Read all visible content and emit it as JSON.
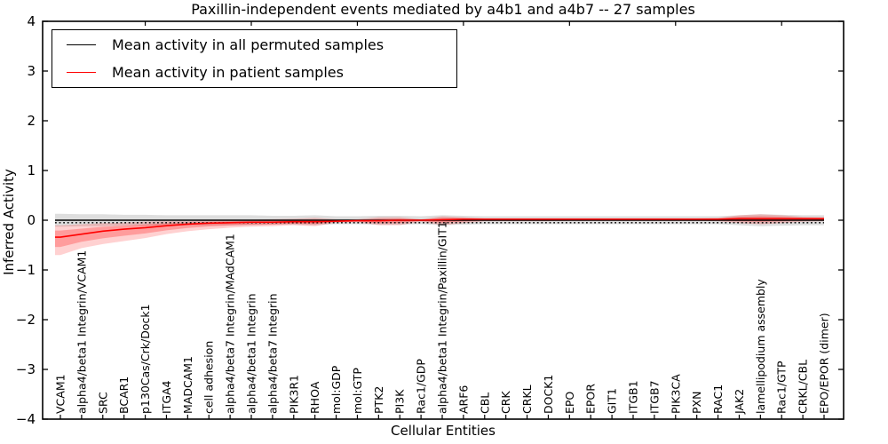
{
  "title": "Paxillin-independent events mediated by a4b1 and a4b7 -- 27 samples",
  "legend": {
    "items": [
      {
        "label": "Mean activity in all permuted samples",
        "color": "#000000"
      },
      {
        "label": "Mean activity in patient samples",
        "color": "#ff0000"
      }
    ]
  },
  "chart_data": {
    "type": "line",
    "title": "Paxillin-independent events mediated by a4b1 and a4b7 -- 27 samples",
    "xlabel": "Cellular Entities",
    "ylabel": "Inferred Activity",
    "ylim": [
      -4,
      4
    ],
    "yticks": [
      4,
      3,
      2,
      1,
      0,
      -1,
      -2,
      -3,
      -4
    ],
    "grid": false,
    "legend_position": "upper left",
    "categories": [
      "VCAM1",
      "alpha4/beta1 Integrin/VCAM1",
      "SRC",
      "BCAR1",
      "p130Cas/Crk/Dock1",
      "ITGA4",
      "MADCAM1",
      "cell adhesion",
      "alpha4/beta7 Integrin/MAdCAM1",
      "alpha4/beta1 Integrin",
      "alpha4/beta7 Integrin",
      "PIK3R1",
      "RHOA",
      "mol:GDP",
      "mol:GTP",
      "PTK2",
      "PI3K",
      "Rac1/GDP",
      "alpha4/beta1 Integrin/Paxillin/GIT1",
      "ARF6",
      "CBL",
      "CRK",
      "CRKL",
      "DOCK1",
      "EPO",
      "EPOR",
      "GIT1",
      "ITGB1",
      "ITGB7",
      "PIK3CA",
      "PXN",
      "RAC1",
      "JAK2",
      "lamellipodium assembly",
      "Rac1/GTP",
      "CRKL/CBL",
      "EPO/EPOR (dimer)"
    ],
    "series": [
      {
        "name": "Mean activity in all permuted samples",
        "color": "#000000",
        "values": [
          0,
          0,
          0,
          0,
          0,
          0,
          0,
          0,
          0,
          0,
          0,
          0,
          0,
          0,
          0,
          0,
          0,
          0,
          0,
          0,
          0,
          0,
          0,
          0,
          0,
          0,
          0,
          0,
          0,
          0,
          0,
          0,
          0,
          0,
          0,
          0,
          0
        ],
        "band_halfwidth": [
          0.13,
          0.12,
          0.12,
          0.11,
          0.11,
          0.1,
          0.1,
          0.1,
          0.1,
          0.1,
          0.09,
          0.09,
          0.1,
          0.08,
          0.08,
          0.09,
          0.09,
          0.08,
          0.1,
          0.09,
          0.08,
          0.08,
          0.08,
          0.08,
          0.08,
          0.08,
          0.08,
          0.08,
          0.08,
          0.08,
          0.08,
          0.08,
          0.1,
          0.12,
          0.11,
          0.1,
          0.1
        ]
      },
      {
        "name": "Mean activity in patient samples",
        "color": "#ff0000",
        "values": [
          -0.34,
          -0.28,
          -0.22,
          -0.18,
          -0.15,
          -0.11,
          -0.08,
          -0.06,
          -0.05,
          -0.04,
          -0.04,
          -0.03,
          -0.03,
          -0.02,
          -0.01,
          -0.01,
          0,
          0,
          0.01,
          0.02,
          0.02,
          0.02,
          0.02,
          0.02,
          0.02,
          0.02,
          0.02,
          0.02,
          0.02,
          0.02,
          0.02,
          0.02,
          0.03,
          0.03,
          0.03,
          0.03,
          0.03
        ],
        "band_lower": [
          -0.7,
          -0.56,
          -0.48,
          -0.42,
          -0.36,
          -0.28,
          -0.22,
          -0.18,
          -0.15,
          -0.13,
          -0.12,
          -0.1,
          -0.12,
          -0.05,
          -0.04,
          -0.1,
          -0.1,
          -0.03,
          -0.1,
          -0.06,
          -0.02,
          -0.02,
          -0.02,
          -0.02,
          -0.01,
          -0.01,
          -0.01,
          -0.01,
          -0.01,
          -0.01,
          -0.01,
          -0.02,
          -0.06,
          -0.08,
          -0.06,
          -0.03,
          -0.02
        ],
        "band_upper": [
          -0.1,
          -0.08,
          -0.06,
          -0.05,
          -0.03,
          -0.02,
          -0.02,
          -0.01,
          0.0,
          0.01,
          0.02,
          0.03,
          0.05,
          0.02,
          0.02,
          0.06,
          0.06,
          0.02,
          0.08,
          0.06,
          0.04,
          0.04,
          0.04,
          0.04,
          0.04,
          0.04,
          0.04,
          0.04,
          0.04,
          0.04,
          0.04,
          0.05,
          0.1,
          0.12,
          0.1,
          0.07,
          0.06
        ]
      }
    ],
    "dotted_reference_line_y": -0.05
  }
}
